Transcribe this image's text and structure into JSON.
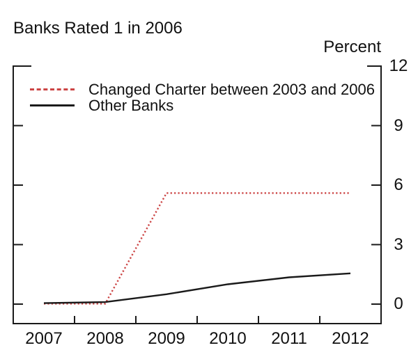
{
  "title": "Banks Rated 1 in 2006",
  "axis_unit_label": "Percent",
  "colors": {
    "axis": "#1a1a1a",
    "series_changed_charter": "#cc4444",
    "series_other_banks": "#1a1a1a",
    "text": "#111111"
  },
  "legend": {
    "items": [
      {
        "label": "Changed Charter between 2003 and 2006",
        "color": "#cc4444",
        "style": "dashed"
      },
      {
        "label": "Other Banks",
        "color": "#1a1a1a",
        "style": "solid"
      }
    ]
  },
  "chart_data": {
    "type": "line",
    "title": "Banks Rated 1 in 2006",
    "categories": [
      "2007",
      "2008",
      "2009",
      "2010",
      "2011",
      "2012"
    ],
    "series": [
      {
        "name": "Changed Charter between 2003 and 2006",
        "color": "#cc4444",
        "line_style": "dotted",
        "values": [
          0.02,
          0.02,
          5.6,
          5.6,
          5.6,
          5.6
        ]
      },
      {
        "name": "Other Banks",
        "color": "#1a1a1a",
        "line_style": "solid",
        "values": [
          0.05,
          0.1,
          0.5,
          1.0,
          1.35,
          1.55
        ]
      }
    ],
    "xlabel": "",
    "ylabel": "Percent",
    "ylim": [
      0,
      12
    ],
    "yticks": [
      0,
      3,
      6,
      9,
      12
    ],
    "ytick_side": "right",
    "grid": false,
    "legend_position": "top-left"
  }
}
